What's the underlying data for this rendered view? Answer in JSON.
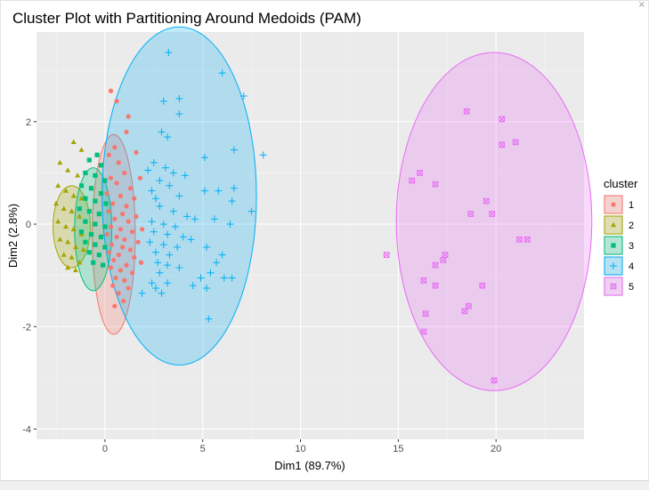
{
  "window": {
    "close_glyph": "×"
  },
  "chart_data": {
    "type": "scatter",
    "title": "Cluster Plot with Partitioning Around Medoids (PAM)",
    "xlabel": "Dim1 (89.7%)",
    "ylabel": "Dim2 (2.8%)",
    "xlim": [
      -3.5,
      24.5
    ],
    "ylim": [
      -4.2,
      3.75
    ],
    "xticks": [
      0,
      5,
      10,
      15,
      20
    ],
    "yticks": [
      2,
      0,
      -2,
      -4
    ],
    "grid": true,
    "legend": {
      "title": "cluster",
      "position": "right"
    },
    "series": [
      {
        "name": "1",
        "color": "#F8766D",
        "shape": "circle",
        "ellipse": {
          "cx": 0.45,
          "cy": -0.2,
          "rx": 1.1,
          "ry": 1.95,
          "rotation_deg": 0
        },
        "points": [
          [
            0.3,
            2.6
          ],
          [
            0.6,
            2.4
          ],
          [
            1.2,
            2.1
          ],
          [
            1.1,
            1.8
          ],
          [
            0.5,
            1.5
          ],
          [
            0.2,
            1.35
          ],
          [
            0.7,
            1.2
          ],
          [
            1.0,
            1.0
          ],
          [
            0.3,
            0.9
          ],
          [
            0.6,
            0.8
          ],
          [
            1.3,
            0.7
          ],
          [
            0.1,
            0.6
          ],
          [
            0.8,
            0.55
          ],
          [
            1.5,
            0.5
          ],
          [
            0.4,
            0.4
          ],
          [
            1.1,
            0.35
          ],
          [
            0.2,
            0.25
          ],
          [
            0.9,
            0.2
          ],
          [
            1.6,
            0.15
          ],
          [
            0.5,
            0.1
          ],
          [
            1.2,
            0.05
          ],
          [
            0.3,
            -0.05
          ],
          [
            0.8,
            -0.1
          ],
          [
            1.4,
            -0.15
          ],
          [
            0.1,
            -0.2
          ],
          [
            0.6,
            -0.25
          ],
          [
            1.0,
            -0.3
          ],
          [
            1.7,
            -0.35
          ],
          [
            0.35,
            -0.4
          ],
          [
            0.9,
            -0.45
          ],
          [
            1.3,
            -0.5
          ],
          [
            0.2,
            -0.55
          ],
          [
            0.7,
            -0.6
          ],
          [
            1.5,
            -0.65
          ],
          [
            0.45,
            -0.7
          ],
          [
            1.1,
            -0.8
          ],
          [
            0.3,
            -0.85
          ],
          [
            0.8,
            -0.9
          ],
          [
            1.4,
            -0.95
          ],
          [
            0.55,
            -1.05
          ],
          [
            1.0,
            -1.1
          ],
          [
            0.4,
            -1.2
          ],
          [
            1.2,
            -1.25
          ],
          [
            0.7,
            -1.35
          ],
          [
            0.95,
            -1.5
          ],
          [
            0.5,
            -1.6
          ],
          [
            1.6,
            1.4
          ],
          [
            1.8,
            0.9
          ],
          [
            1.9,
            -0.1
          ],
          [
            1.85,
            -0.75
          ]
        ]
      },
      {
        "name": "2",
        "color": "#A3A500",
        "shape": "triangle",
        "ellipse": {
          "cx": -1.7,
          "cy": -0.05,
          "rx": 0.95,
          "ry": 0.8,
          "rotation_deg": 0
        },
        "points": [
          [
            -1.6,
            1.6
          ],
          [
            -1.2,
            1.45
          ],
          [
            -2.3,
            1.2
          ],
          [
            -1.9,
            1.05
          ],
          [
            -1.4,
            0.95
          ],
          [
            -2.4,
            0.75
          ],
          [
            -2.0,
            0.65
          ],
          [
            -1.6,
            0.55
          ],
          [
            -1.2,
            0.5
          ],
          [
            -2.5,
            0.4
          ],
          [
            -2.1,
            0.3
          ],
          [
            -1.7,
            0.25
          ],
          [
            -1.3,
            0.15
          ],
          [
            -2.4,
            0.05
          ],
          [
            -2.0,
            -0.05
          ],
          [
            -1.6,
            -0.1
          ],
          [
            -1.2,
            -0.2
          ],
          [
            -2.3,
            -0.3
          ],
          [
            -1.9,
            -0.35
          ],
          [
            -1.5,
            -0.45
          ],
          [
            -1.1,
            -0.5
          ],
          [
            -2.1,
            -0.6
          ],
          [
            -1.7,
            -0.65
          ],
          [
            -1.3,
            -0.75
          ],
          [
            -1.9,
            -0.85
          ],
          [
            -1.5,
            -0.9
          ]
        ]
      },
      {
        "name": "3",
        "color": "#00BF7D",
        "shape": "square",
        "ellipse": {
          "cx": -0.6,
          "cy": -0.1,
          "rx": 0.95,
          "ry": 1.2,
          "rotation_deg": 0
        },
        "points": [
          [
            -0.4,
            1.35
          ],
          [
            -0.8,
            1.25
          ],
          [
            -0.2,
            1.15
          ],
          [
            -1.0,
            1.0
          ],
          [
            -0.5,
            0.95
          ],
          [
            0.0,
            0.85
          ],
          [
            -1.2,
            0.75
          ],
          [
            -0.7,
            0.7
          ],
          [
            -0.2,
            0.6
          ],
          [
            -1.0,
            0.5
          ],
          [
            -0.5,
            0.45
          ],
          [
            0.05,
            0.4
          ],
          [
            -1.3,
            0.3
          ],
          [
            -0.8,
            0.25
          ],
          [
            -0.3,
            0.2
          ],
          [
            -1.0,
            0.05
          ],
          [
            -0.5,
            0.0
          ],
          [
            0.0,
            -0.05
          ],
          [
            -1.2,
            -0.15
          ],
          [
            -0.7,
            -0.2
          ],
          [
            -0.2,
            -0.25
          ],
          [
            -1.0,
            -0.35
          ],
          [
            -0.5,
            -0.4
          ],
          [
            0.0,
            -0.45
          ],
          [
            -0.8,
            -0.55
          ],
          [
            -0.3,
            -0.6
          ],
          [
            -0.6,
            -0.75
          ],
          [
            -0.1,
            -0.8
          ]
        ]
      },
      {
        "name": "4",
        "color": "#00B0F6",
        "shape": "cross",
        "ellipse": {
          "cx": 3.8,
          "cy": 0.55,
          "rx": 3.95,
          "ry": 3.3,
          "rotation_deg": 0
        },
        "points": [
          [
            3.25,
            3.35
          ],
          [
            6.0,
            2.95
          ],
          [
            7.1,
            2.5
          ],
          [
            3.8,
            2.45
          ],
          [
            3.0,
            2.4
          ],
          [
            3.8,
            2.15
          ],
          [
            2.9,
            1.8
          ],
          [
            3.2,
            1.7
          ],
          [
            6.6,
            1.45
          ],
          [
            8.1,
            1.35
          ],
          [
            5.1,
            1.3
          ],
          [
            2.5,
            1.2
          ],
          [
            3.1,
            1.1
          ],
          [
            2.2,
            1.05
          ],
          [
            3.5,
            1.0
          ],
          [
            4.1,
            0.95
          ],
          [
            2.8,
            0.85
          ],
          [
            3.3,
            0.75
          ],
          [
            2.4,
            0.65
          ],
          [
            5.1,
            0.65
          ],
          [
            5.8,
            0.65
          ],
          [
            6.6,
            0.7
          ],
          [
            3.8,
            0.55
          ],
          [
            2.6,
            0.5
          ],
          [
            6.5,
            0.45
          ],
          [
            2.8,
            0.35
          ],
          [
            3.5,
            0.25
          ],
          [
            4.2,
            0.15
          ],
          [
            7.5,
            0.25
          ],
          [
            4.6,
            0.1
          ],
          [
            5.6,
            0.1
          ],
          [
            2.4,
            0.05
          ],
          [
            3.0,
            0.0
          ],
          [
            3.6,
            -0.05
          ],
          [
            6.4,
            0.0
          ],
          [
            2.5,
            -0.15
          ],
          [
            3.2,
            -0.2
          ],
          [
            4.0,
            -0.25
          ],
          [
            4.4,
            -0.3
          ],
          [
            2.3,
            -0.35
          ],
          [
            3.0,
            -0.4
          ],
          [
            3.7,
            -0.45
          ],
          [
            5.2,
            -0.45
          ],
          [
            6.0,
            -0.6
          ],
          [
            2.6,
            -0.55
          ],
          [
            3.3,
            -0.6
          ],
          [
            2.7,
            -0.75
          ],
          [
            5.7,
            -0.75
          ],
          [
            3.2,
            -0.8
          ],
          [
            3.8,
            -0.85
          ],
          [
            2.8,
            -0.95
          ],
          [
            5.4,
            -0.95
          ],
          [
            6.1,
            -1.05
          ],
          [
            6.5,
            -1.05
          ],
          [
            4.9,
            -1.05
          ],
          [
            2.4,
            -1.15
          ],
          [
            3.2,
            -1.15
          ],
          [
            4.5,
            -1.2
          ],
          [
            2.6,
            -1.25
          ],
          [
            5.2,
            -1.25
          ],
          [
            1.9,
            -1.35
          ],
          [
            2.9,
            -1.35
          ],
          [
            5.3,
            -1.85
          ]
        ]
      },
      {
        "name": "5",
        "color": "#E76BF3",
        "shape": "square-cross",
        "ellipse": {
          "cx": 19.9,
          "cy": 0.05,
          "rx": 5.0,
          "ry": 3.3,
          "rotation_deg": 0
        },
        "points": [
          [
            18.5,
            2.2
          ],
          [
            20.3,
            2.05
          ],
          [
            21.0,
            1.6
          ],
          [
            20.3,
            1.55
          ],
          [
            16.1,
            1.0
          ],
          [
            15.7,
            0.85
          ],
          [
            16.9,
            0.78
          ],
          [
            19.5,
            0.45
          ],
          [
            18.7,
            0.2
          ],
          [
            19.8,
            0.2
          ],
          [
            21.2,
            -0.3
          ],
          [
            21.6,
            -0.3
          ],
          [
            14.4,
            -0.6
          ],
          [
            17.4,
            -0.6
          ],
          [
            17.3,
            -0.7
          ],
          [
            16.9,
            -0.8
          ],
          [
            16.3,
            -1.1
          ],
          [
            16.9,
            -1.2
          ],
          [
            19.3,
            -1.2
          ],
          [
            18.6,
            -1.6
          ],
          [
            18.4,
            -1.7
          ],
          [
            16.4,
            -1.75
          ],
          [
            16.3,
            -2.1
          ],
          [
            19.9,
            -3.05
          ]
        ]
      }
    ]
  }
}
